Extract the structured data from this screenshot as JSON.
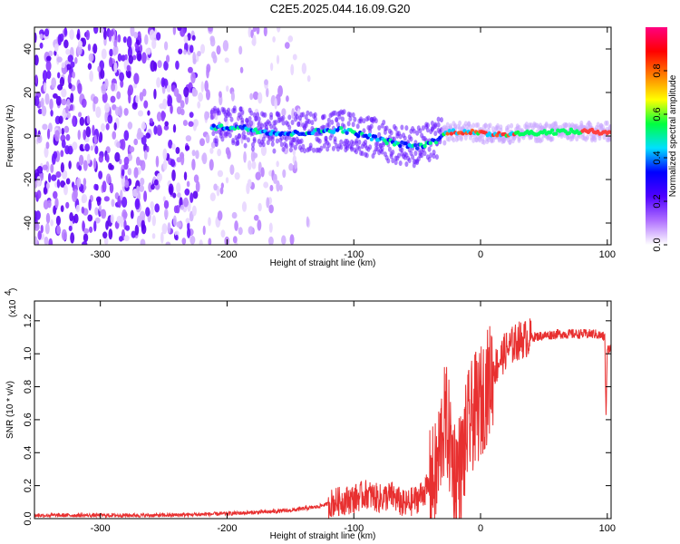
{
  "title": "C2E5.2025.044.16.09.G20",
  "chart_data": [
    {
      "type": "heatmap",
      "xlabel": "Height of straight line (km)",
      "ylabel": "Frequency (Hz)",
      "xlim": [
        -352,
        103
      ],
      "ylim": [
        -50,
        50
      ],
      "x_ticks": [
        -300,
        -200,
        -100,
        0,
        100
      ],
      "x_tick_labels": [
        "-300",
        "-200",
        "-100",
        "0",
        "100"
      ],
      "y_ticks": [
        -40,
        -20,
        0,
        20,
        40
      ],
      "y_tick_labels": [
        "-40",
        "-20",
        "0",
        "20",
        "40"
      ],
      "colorbar": {
        "label": "Normalized spectral amplitude",
        "range": [
          0,
          1
        ],
        "ticks": [
          0,
          0.2,
          0.4,
          0.6,
          0.8
        ],
        "tick_labels": [
          "0.0",
          "0.2",
          "0.4",
          "0.6",
          "0.8"
        ],
        "colors": [
          "#ffffff",
          "#b070ff",
          "#5000ff",
          "#0000ff",
          "#00e0ff",
          "#00ff40",
          "#ffff00",
          "#ff8000",
          "#ff0000",
          "#ff0080"
        ]
      },
      "noise_region": {
        "x_range": [
          -352,
          -135
        ],
        "note_color": "#7a28ff"
      },
      "ridge": {
        "x": [
          -212,
          -190,
          -170,
          -150,
          -130,
          -110,
          -90,
          -70,
          -50,
          -40,
          -35,
          -25,
          -10,
          0,
          20,
          60,
          100,
          103
        ],
        "y": [
          4,
          4,
          2,
          1,
          2,
          3,
          0,
          -3,
          -5,
          -3,
          -2,
          2,
          2,
          1,
          1,
          2,
          2,
          2
        ]
      }
    },
    {
      "type": "line",
      "xlabel": "Height of straight line (km)",
      "ylabel": "SNR (10 * v/v)",
      "y_multiplier_label": "(x10",
      "y_multiplier_exp": "4",
      "xlim": [
        -352,
        103
      ],
      "ylim": [
        0,
        1.32
      ],
      "x_ticks": [
        -300,
        -200,
        -100,
        0,
        100
      ],
      "x_tick_labels": [
        "-300",
        "-200",
        "-100",
        "0",
        "100"
      ],
      "y_ticks": [
        0,
        0.2,
        0.4,
        0.6,
        0.8,
        1.0,
        1.2
      ],
      "y_tick_labels": [
        "0.0",
        "0.2",
        "0.4",
        "0.6",
        "0.8",
        "1.0",
        "1.2"
      ],
      "line_color": "#e83030",
      "series": [
        {
          "x": [
            -352,
            -300,
            -250,
            -200,
            -170,
            -150,
            -130,
            -115,
            -100,
            -90,
            -80,
            -70,
            -60,
            -50,
            -40,
            -35,
            -30,
            -27,
            -25,
            -20,
            -15,
            -10,
            -5,
            0,
            5,
            10,
            20,
            30,
            40,
            50,
            60,
            70,
            80,
            90,
            95,
            98,
            99,
            100,
            103
          ],
          "y": [
            0.02,
            0.02,
            0.02,
            0.03,
            0.04,
            0.05,
            0.07,
            0.1,
            0.12,
            0.15,
            0.12,
            0.14,
            0.08,
            0.12,
            0.2,
            0.25,
            0.55,
            0.6,
            0.5,
            0.28,
            0.32,
            0.55,
            0.65,
            0.7,
            0.8,
            0.9,
            1.02,
            1.08,
            1.1,
            1.11,
            1.12,
            1.12,
            1.12,
            1.12,
            1.11,
            1.1,
            0.62,
            1.02,
            1.04
          ]
        }
      ]
    }
  ]
}
